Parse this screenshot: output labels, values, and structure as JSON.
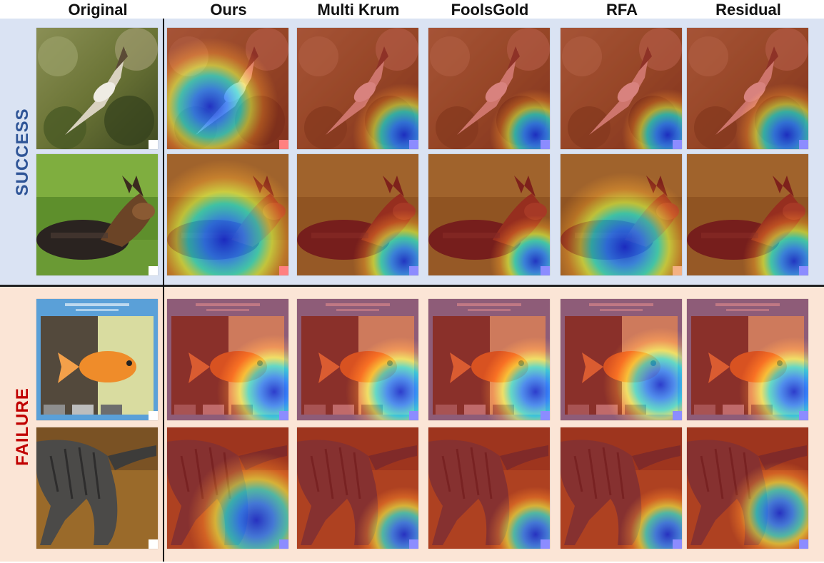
{
  "columns": [
    "Original",
    "Ours",
    "Multi Krum",
    "FoolsGold",
    "RFA",
    "Residual"
  ],
  "rows": [
    {
      "group": "SUCCESS",
      "group_color": "#2f5597",
      "subject": "bird"
    },
    {
      "group": "SUCCESS",
      "group_color": "#2f5597",
      "subject": "dog"
    },
    {
      "group": "FAILURE",
      "group_color": "#c00000",
      "subject": "goldfish"
    },
    {
      "group": "FAILURE",
      "group_color": "#c00000",
      "subject": "cat"
    }
  ],
  "labels": {
    "success": "SUCCESS",
    "failure": "FAILURE"
  },
  "colors": {
    "success_band": "#dae3f3",
    "failure_band": "#fbe5d6",
    "success_text": "#2f5597",
    "failure_text": "#c00000",
    "trigger_benign": "#ffffff",
    "trigger_attacked": "#8c8cff",
    "trigger_ours": "#ff8080"
  }
}
